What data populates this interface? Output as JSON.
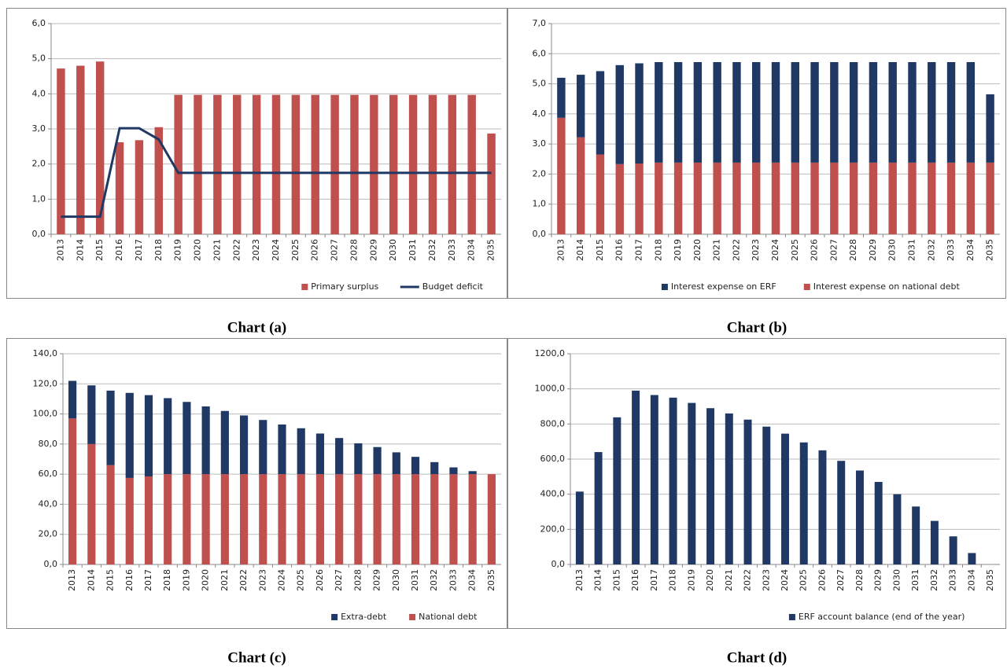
{
  "chart_data": [
    {
      "type": "bar",
      "caption": "Chart (a)",
      "categories": [
        "2013",
        "2014",
        "2015",
        "2016",
        "2017",
        "2018",
        "2019",
        "2020",
        "2021",
        "2022",
        "2023",
        "2024",
        "2025",
        "2026",
        "2027",
        "2028",
        "2029",
        "2030",
        "2031",
        "2032",
        "2033",
        "2034",
        "2035"
      ],
      "series": [
        {
          "name": "Primary surplus",
          "color": "#c0504d",
          "type": "bar",
          "values": [
            4.72,
            4.8,
            4.92,
            2.62,
            2.68,
            3.05,
            3.97,
            3.97,
            3.97,
            3.97,
            3.97,
            3.97,
            3.97,
            3.97,
            3.97,
            3.97,
            3.97,
            3.97,
            3.97,
            3.97,
            3.97,
            3.97,
            2.87
          ]
        },
        {
          "name": "Budget deficit",
          "color": "#1f3864",
          "type": "line",
          "values": [
            0.5,
            0.5,
            0.5,
            3.02,
            3.02,
            2.7,
            1.75,
            1.75,
            1.75,
            1.75,
            1.75,
            1.75,
            1.75,
            1.75,
            1.75,
            1.75,
            1.75,
            1.75,
            1.75,
            1.75,
            1.75,
            1.75,
            1.75
          ]
        }
      ],
      "ylim": [
        0,
        6
      ],
      "yticks": [
        {
          "value": 0,
          "label": "0,0"
        },
        {
          "value": 1,
          "label": "1,0"
        },
        {
          "value": 2,
          "label": "2,0"
        },
        {
          "value": 3,
          "label": "3,0"
        },
        {
          "value": 4,
          "label": "4,0"
        },
        {
          "value": 5,
          "label": "5,0"
        },
        {
          "value": 6,
          "label": "6,0"
        }
      ],
      "grid": true,
      "legend": "bottom-right"
    },
    {
      "type": "stacked_bar",
      "caption": "Chart (b)",
      "categories": [
        "2013",
        "2014",
        "2015",
        "2016",
        "2017",
        "2018",
        "2019",
        "2020",
        "2021",
        "2022",
        "2023",
        "2024",
        "2025",
        "2026",
        "2027",
        "2028",
        "2029",
        "2030",
        "2031",
        "2032",
        "2033",
        "2034",
        "2035"
      ],
      "series": [
        {
          "name": "Interest expense on ERF",
          "color": "#1f3864",
          "values": [
            1.33,
            2.08,
            2.77,
            3.29,
            3.33,
            3.34,
            3.34,
            3.34,
            3.34,
            3.34,
            3.34,
            3.34,
            3.34,
            3.34,
            3.34,
            3.34,
            3.34,
            3.34,
            3.34,
            3.34,
            3.34,
            3.34,
            2.27
          ]
        },
        {
          "name": "Interest expense on national  debt",
          "color": "#c0504d",
          "values": [
            3.87,
            3.22,
            2.65,
            2.33,
            2.35,
            2.38,
            2.38,
            2.38,
            2.38,
            2.38,
            2.38,
            2.38,
            2.38,
            2.38,
            2.38,
            2.38,
            2.38,
            2.38,
            2.38,
            2.38,
            2.38,
            2.38,
            2.38
          ]
        }
      ],
      "ylim": [
        0,
        7
      ],
      "yticks": [
        {
          "value": 0,
          "label": "0,0"
        },
        {
          "value": 1,
          "label": "1,0"
        },
        {
          "value": 2,
          "label": "2,0"
        },
        {
          "value": 3,
          "label": "3,0"
        },
        {
          "value": 4,
          "label": "4,0"
        },
        {
          "value": 5,
          "label": "5,0"
        },
        {
          "value": 6,
          "label": "6,0"
        },
        {
          "value": 7,
          "label": "7,0"
        }
      ],
      "grid": true,
      "legend": "bottom-right"
    },
    {
      "type": "stacked_bar",
      "caption": "Chart (c)",
      "categories": [
        "2013",
        "2014",
        "2015",
        "2016",
        "2017",
        "2018",
        "2019",
        "2020",
        "2021",
        "2022",
        "2023",
        "2024",
        "2025",
        "2026",
        "2027",
        "2028",
        "2029",
        "2030",
        "2031",
        "2032",
        "2033",
        "2034",
        "2035"
      ],
      "series": [
        {
          "name": "Extra-debt",
          "color": "#1f3864",
          "values": [
            25,
            39,
            49.5,
            56.5,
            54,
            50.5,
            48,
            45,
            42,
            39,
            36,
            33,
            30.5,
            27,
            24,
            20.5,
            18,
            14.5,
            11.5,
            8,
            4.5,
            2,
            0
          ]
        },
        {
          "name": "National debt",
          "color": "#c0504d",
          "values": [
            97,
            80,
            66,
            57.5,
            58.5,
            60,
            60,
            60,
            60,
            60,
            60,
            60,
            60,
            60,
            60,
            60,
            60,
            60,
            60,
            60,
            60,
            60,
            60
          ]
        }
      ],
      "ylim": [
        0,
        140
      ],
      "yticks": [
        {
          "value": 0,
          "label": "0,0"
        },
        {
          "value": 20,
          "label": "20,0"
        },
        {
          "value": 40,
          "label": "40,0"
        },
        {
          "value": 60,
          "label": "60,0"
        },
        {
          "value": 80,
          "label": "80,0"
        },
        {
          "value": 100,
          "label": "100,0"
        },
        {
          "value": 120,
          "label": "120,0"
        },
        {
          "value": 140,
          "label": "140,0"
        }
      ],
      "grid": true,
      "legend": "bottom-right"
    },
    {
      "type": "bar",
      "caption": "Chart (d)",
      "categories": [
        "2013",
        "2014",
        "2015",
        "2016",
        "2017",
        "2018",
        "2019",
        "2020",
        "2021",
        "2022",
        "2023",
        "2024",
        "2025",
        "2026",
        "2027",
        "2028",
        "2029",
        "2030",
        "2031",
        "2032",
        "2033",
        "2034",
        "2035"
      ],
      "series": [
        {
          "name": "ERF account balance (end of the year)",
          "color": "#1f3864",
          "type": "bar",
          "values": [
            415,
            640,
            838,
            990,
            965,
            950,
            920,
            890,
            860,
            825,
            785,
            745,
            695,
            650,
            590,
            535,
            470,
            400,
            330,
            248,
            160,
            65,
            0
          ]
        }
      ],
      "ylim": [
        0,
        1200
      ],
      "yticks": [
        {
          "value": 0,
          "label": "0,0"
        },
        {
          "value": 200,
          "label": "200,0"
        },
        {
          "value": 400,
          "label": "400,0"
        },
        {
          "value": 600,
          "label": "600,0"
        },
        {
          "value": 800,
          "label": "800,0"
        },
        {
          "value": 1000,
          "label": "1000,0"
        },
        {
          "value": 1200,
          "label": "1200,0"
        }
      ],
      "grid": true,
      "legend": "bottom-right"
    }
  ]
}
